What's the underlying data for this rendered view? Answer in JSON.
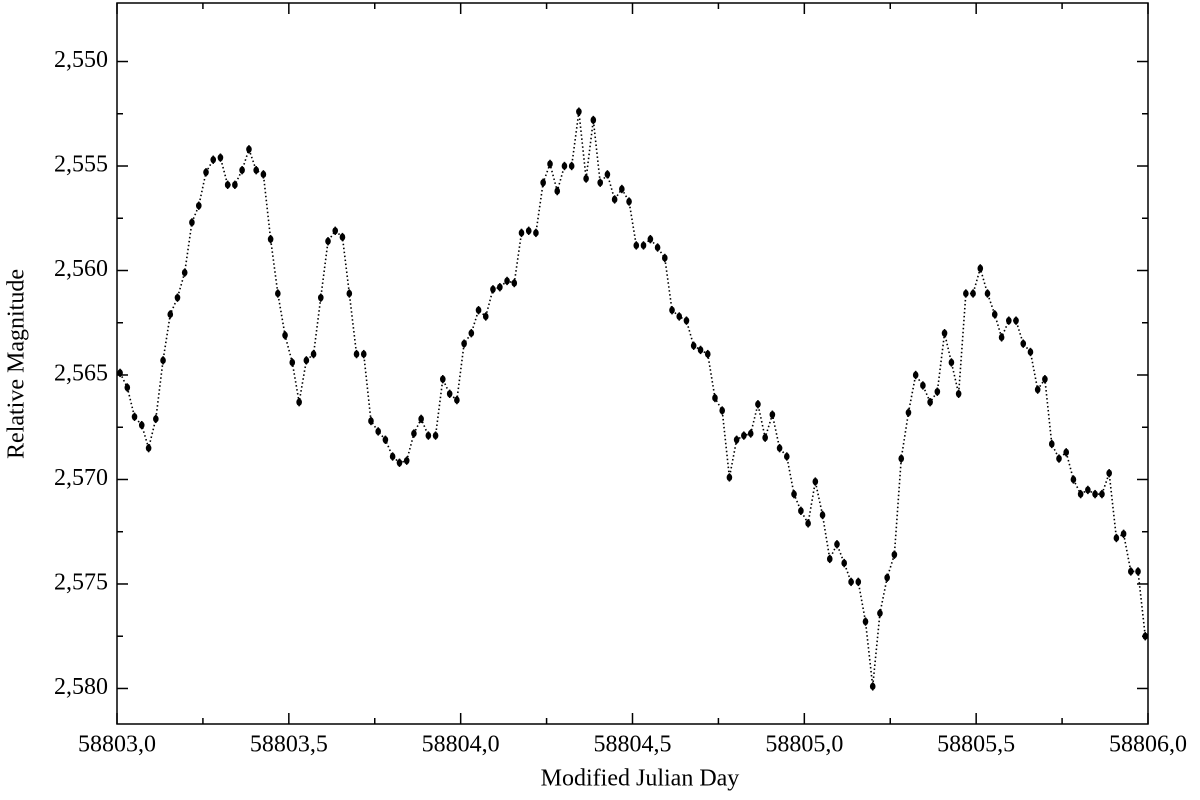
{
  "chart_data": {
    "type": "scatter",
    "line_style": "dotted",
    "color": "#000000",
    "x_label": "Modified Julian Day",
    "y_label": "Relative Magnitude",
    "xlim": [
      58803.0,
      58806.0
    ],
    "xticks": [
      {
        "value": 58803.0,
        "label": "58803,0"
      },
      {
        "value": 58803.5,
        "label": "58803,5"
      },
      {
        "value": 58804.0,
        "label": "58804,0"
      },
      {
        "value": 58804.5,
        "label": "58804,5"
      },
      {
        "value": 58805.0,
        "label": "58805,0"
      },
      {
        "value": 58805.5,
        "label": "58805,5"
      },
      {
        "value": 58806.0,
        "label": "58806,0"
      }
    ],
    "ylim": [
      2.5817,
      2.5472
    ],
    "yticks": [
      {
        "value": 2.55,
        "label": "2,550"
      },
      {
        "value": 2.555,
        "label": "2,555"
      },
      {
        "value": 2.56,
        "label": "2,560"
      },
      {
        "value": 2.565,
        "label": "2,565"
      },
      {
        "value": 2.57,
        "label": "2,570"
      },
      {
        "value": 2.575,
        "label": "2,575"
      },
      {
        "value": 2.58,
        "label": "2,580"
      }
    ],
    "error": 0.0002,
    "x": [
      58803.009,
      58803.03,
      58803.051,
      58803.072,
      58803.092,
      58803.113,
      58803.134,
      58803.155,
      58803.176,
      58803.197,
      58803.218,
      58803.238,
      58803.259,
      58803.28,
      58803.301,
      58803.322,
      58803.343,
      58803.364,
      58803.384,
      58803.405,
      58803.426,
      58803.447,
      58803.468,
      58803.489,
      58803.51,
      58803.53,
      58803.551,
      58803.572,
      58803.593,
      58803.614,
      58803.635,
      58803.656,
      58803.676,
      58803.697,
      58803.718,
      58803.739,
      58803.76,
      58803.781,
      58803.802,
      58803.822,
      58803.843,
      58803.864,
      58803.885,
      58803.906,
      58803.927,
      58803.948,
      58803.968,
      58803.989,
      58804.01,
      58804.031,
      58804.052,
      58804.073,
      58804.094,
      58804.114,
      58804.135,
      58804.156,
      58804.177,
      58804.198,
      58804.219,
      58804.24,
      58804.26,
      58804.281,
      58804.302,
      58804.323,
      58804.344,
      58804.365,
      58804.386,
      58804.406,
      58804.427,
      58804.448,
      58804.469,
      58804.49,
      58804.511,
      58804.532,
      58804.552,
      58804.573,
      58804.594,
      58804.615,
      58804.636,
      58804.657,
      58804.678,
      58804.698,
      58804.719,
      58804.74,
      58804.761,
      58804.782,
      58804.803,
      58804.824,
      58804.844,
      58804.865,
      58804.886,
      58804.907,
      58804.928,
      58804.949,
      58804.97,
      58804.99,
      58805.011,
      58805.032,
      58805.053,
      58805.074,
      58805.095,
      58805.116,
      58805.136,
      58805.157,
      58805.178,
      58805.199,
      58805.22,
      58805.241,
      58805.262,
      58805.282,
      58805.303,
      58805.324,
      58805.345,
      58805.366,
      58805.387,
      58805.408,
      58805.428,
      58805.449,
      58805.47,
      58805.491,
      58805.512,
      58805.533,
      58805.554,
      58805.574,
      58805.595,
      58805.616,
      58805.637,
      58805.658,
      58805.679,
      58805.7,
      58805.72,
      58805.741,
      58805.762,
      58805.783,
      58805.804,
      58805.825,
      58805.846,
      58805.866,
      58805.887,
      58805.908,
      58805.929,
      58805.95,
      58805.971,
      58805.992
    ],
    "values": [
      2.5649,
      2.5656,
      2.567,
      2.5674,
      2.5685,
      2.5671,
      2.5643,
      2.5621,
      2.5613,
      2.5601,
      2.5577,
      2.5569,
      2.5553,
      2.5547,
      2.5546,
      2.5559,
      2.5559,
      2.5552,
      2.5542,
      2.5552,
      2.5554,
      2.5585,
      2.5611,
      2.5631,
      2.5644,
      2.5663,
      2.5643,
      2.564,
      2.5613,
      2.5586,
      2.5581,
      2.5584,
      2.5611,
      2.564,
      2.564,
      2.5672,
      2.5677,
      2.5681,
      2.5689,
      2.5692,
      2.5691,
      2.5678,
      2.5671,
      2.5679,
      2.5679,
      2.5652,
      2.5659,
      2.5662,
      2.5635,
      2.563,
      2.5619,
      2.5622,
      2.5609,
      2.5608,
      2.5605,
      2.5606,
      2.5582,
      2.5581,
      2.5582,
      2.5558,
      2.5549,
      2.5562,
      2.555,
      2.555,
      2.5524,
      2.5556,
      2.5528,
      2.5558,
      2.5554,
      2.5566,
      2.5561,
      2.5567,
      2.5588,
      2.5588,
      2.5585,
      2.5589,
      2.5594,
      2.5619,
      2.5622,
      2.5624,
      2.5636,
      2.5638,
      2.564,
      2.5661,
      2.5667,
      2.5699,
      2.5681,
      2.5679,
      2.5678,
      2.5664,
      2.568,
      2.5669,
      2.5685,
      2.5689,
      2.5707,
      2.5715,
      2.5721,
      2.5701,
      2.5717,
      2.5738,
      2.5731,
      2.574,
      2.5749,
      2.5749,
      2.5768,
      2.5799,
      2.5764,
      2.5747,
      2.5736,
      2.569,
      2.5668,
      2.565,
      2.5655,
      2.5663,
      2.5658,
      2.563,
      2.5644,
      2.5659,
      2.5611,
      2.5611,
      2.5599,
      2.5611,
      2.5621,
      2.5632,
      2.5624,
      2.5624,
      2.5635,
      2.5639,
      2.5657,
      2.5652,
      2.5683,
      2.569,
      2.5687,
      2.57,
      2.5707,
      2.5705,
      2.5707,
      2.5707,
      2.5697,
      2.5728,
      2.5726,
      2.5744,
      2.5744,
      2.5775
    ]
  }
}
